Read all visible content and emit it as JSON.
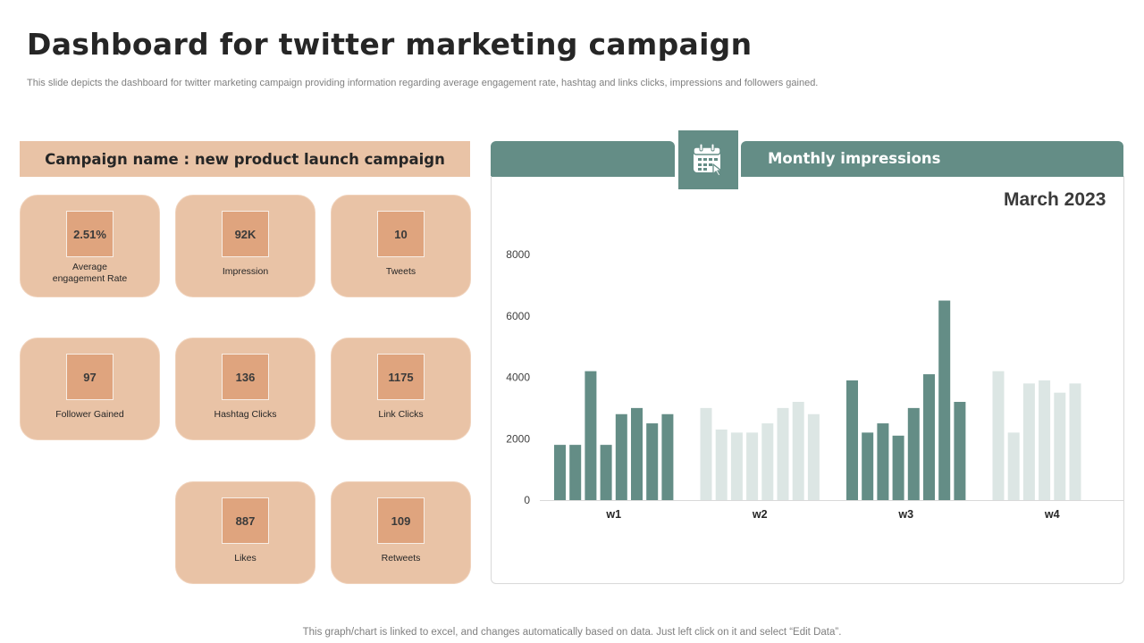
{
  "header": {
    "title": "Dashboard for twitter marketing campaign",
    "subtitle": "This slide depicts the dashboard for twitter marketing campaign providing information regarding average engagement rate, hashtag and links clicks, impressions and followers gained."
  },
  "campaign": {
    "banner": "Campaign name : new product launch campaign",
    "kpis": [
      {
        "value": "2.51%",
        "label": "Average engagement Rate"
      },
      {
        "value": "92K",
        "label": "Impression"
      },
      {
        "value": "10",
        "label": "Tweets"
      },
      {
        "value": "97",
        "label": "Follower Gained"
      },
      {
        "value": "136",
        "label": "Hashtag Clicks"
      },
      {
        "value": "1175",
        "label": "Link Clicks"
      },
      {
        "value": "887",
        "label": "Likes"
      },
      {
        "value": "109",
        "label": "Retweets"
      }
    ]
  },
  "chart_panel": {
    "title": "Monthly impressions",
    "period": "March 2023",
    "icon": "calendar-icon"
  },
  "chart_data": {
    "type": "bar",
    "categories": [
      "w1",
      "w2",
      "w3",
      "w4"
    ],
    "values_per_category": [
      [
        1800,
        1800,
        4200,
        1800,
        2800,
        3000,
        2500,
        2800
      ],
      [
        3000,
        2300,
        2200,
        2200,
        2500,
        3000,
        3200,
        2800
      ],
      [
        3900,
        2200,
        2500,
        2100,
        3000,
        4100,
        6500,
        3200
      ],
      [
        4200,
        2200,
        3800,
        3900,
        3500,
        3800
      ]
    ],
    "colors": [
      "#648d86",
      "#dce6e4",
      "#648d86",
      "#dce6e4"
    ],
    "yticks": [
      0,
      2000,
      4000,
      6000,
      8000
    ],
    "ylim": [
      0,
      8000
    ],
    "grid": false
  },
  "footer": {
    "note": "This graph/chart is linked to excel,  and changes automatically based on data. Just left click on it and select “Edit Data”."
  }
}
